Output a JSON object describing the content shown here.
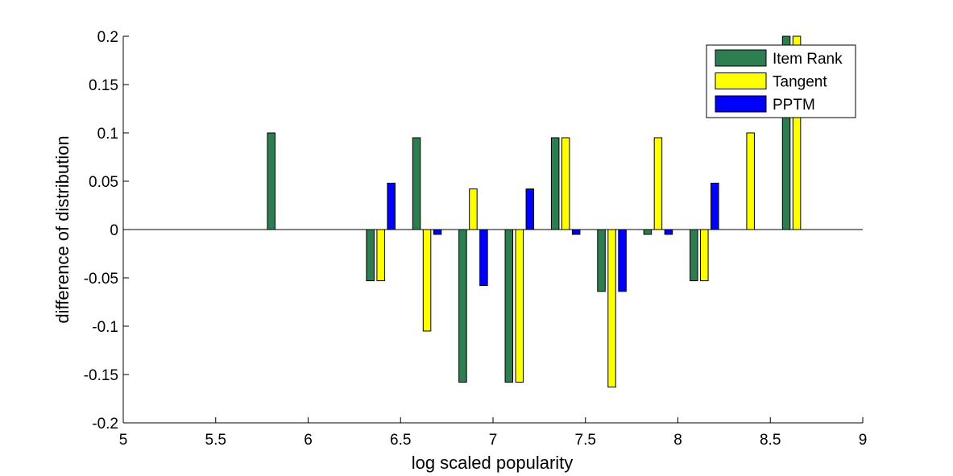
{
  "chart_data": {
    "type": "bar",
    "title": "",
    "xlabel": "log scaled popularity",
    "ylabel": "difference of distribution",
    "xlim": [
      5,
      9
    ],
    "ylim": [
      -0.2,
      0.2
    ],
    "xticks": [
      "5",
      "5.5",
      "6",
      "6.5",
      "7",
      "7.5",
      "8",
      "8.5",
      "9"
    ],
    "yticks": [
      "-0.2",
      "-0.15",
      "-0.1",
      "-0.05",
      "0",
      "0.05",
      "0.1",
      "0.15",
      "0.2"
    ],
    "grid": false,
    "legend_position": "top-right",
    "categories": [
      5.8571,
      6.3929,
      6.6429,
      6.8929,
      7.1429,
      7.3929,
      7.6429,
      7.8929,
      8.1429,
      8.3929,
      8.6429
    ],
    "series": [
      {
        "name": "Item Rank",
        "color": "#2e7d50",
        "values": [
          0.1,
          -0.053,
          0.095,
          -0.158,
          -0.158,
          0.095,
          -0.064,
          -0.005,
          -0.053,
          0,
          0.2
        ]
      },
      {
        "name": "Tangent",
        "color": "#ffff00",
        "values": [
          0,
          -0.053,
          -0.105,
          0.042,
          -0.158,
          0.095,
          -0.163,
          0.095,
          -0.053,
          0.1,
          0.2
        ]
      },
      {
        "name": "PPTM",
        "color": "#0000ff",
        "values": [
          0,
          0.048,
          -0.005,
          -0.058,
          0.042,
          -0.005,
          -0.064,
          -0.005,
          0.048,
          0,
          0
        ]
      }
    ]
  }
}
